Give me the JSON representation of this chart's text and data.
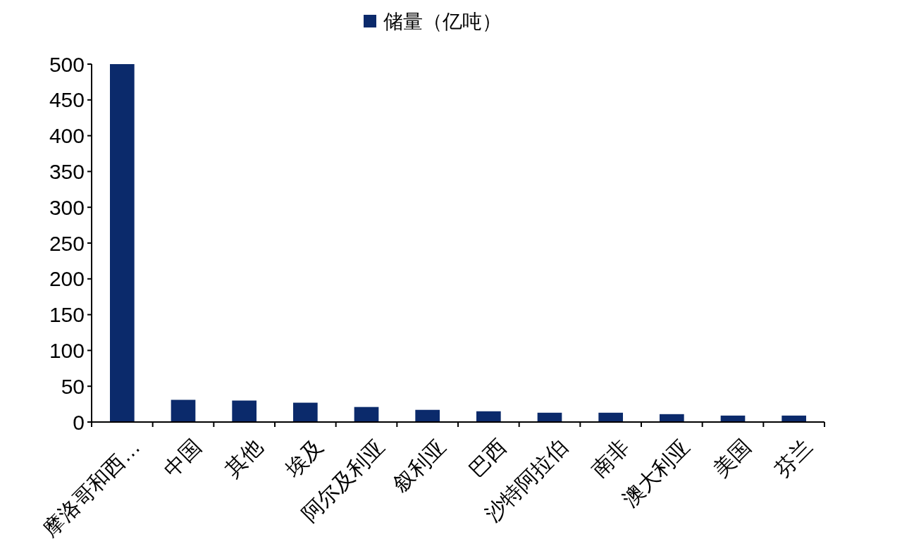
{
  "chart_data": {
    "type": "bar",
    "categories": [
      "摩洛哥和西…",
      "中国",
      "其他",
      "埃及",
      "阿尔及利亚",
      "叙利亚",
      "巴西",
      "沙特阿拉伯",
      "南非",
      "澳大利亚",
      "美国",
      "芬兰"
    ],
    "series": [
      {
        "name": "储量（亿吨）",
        "color": "#0b2a6b",
        "values": [
          500,
          31,
          30,
          27,
          21,
          17,
          15,
          13,
          13,
          11,
          9,
          9
        ]
      }
    ],
    "ylim": [
      0,
      500
    ],
    "yticks": [
      0,
      50,
      100,
      150,
      200,
      250,
      300,
      350,
      400,
      450,
      500
    ],
    "grid": false,
    "legend": "top"
  }
}
